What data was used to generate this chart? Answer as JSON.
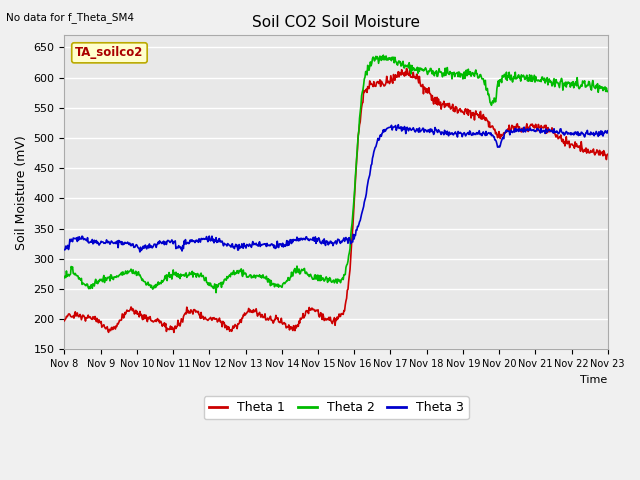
{
  "title": "Soil CO2 Soil Moisture",
  "ylabel": "Soil Moisture (mV)",
  "xlabel": "Time",
  "no_data_text": "No data for f_Theta_SM4",
  "annotation_text": "TA_soilco2",
  "ylim": [
    150,
    670
  ],
  "yticks": [
    150,
    200,
    250,
    300,
    350,
    400,
    450,
    500,
    550,
    600,
    650
  ],
  "x_labels": [
    "Nov 8",
    "Nov 9",
    "Nov 10",
    "Nov 11",
    "Nov 12",
    "Nov 13",
    "Nov 14",
    "Nov 15",
    "Nov 16",
    "Nov 17",
    "Nov 18",
    "Nov 19",
    "Nov 20",
    "Nov 21",
    "Nov 22",
    "Nov 23"
  ],
  "colors": {
    "theta1": "#cc0000",
    "theta2": "#00bb00",
    "theta3": "#0000cc",
    "annotation_bg": "#ffffcc",
    "annotation_border": "#bbaa00",
    "plot_bg": "#e8e8e8",
    "fig_bg": "#f0f0f0",
    "grid": "#ffffff"
  },
  "legend_labels": [
    "Theta 1",
    "Theta 2",
    "Theta 3"
  ],
  "figsize": [
    6.4,
    4.8
  ],
  "dpi": 100
}
